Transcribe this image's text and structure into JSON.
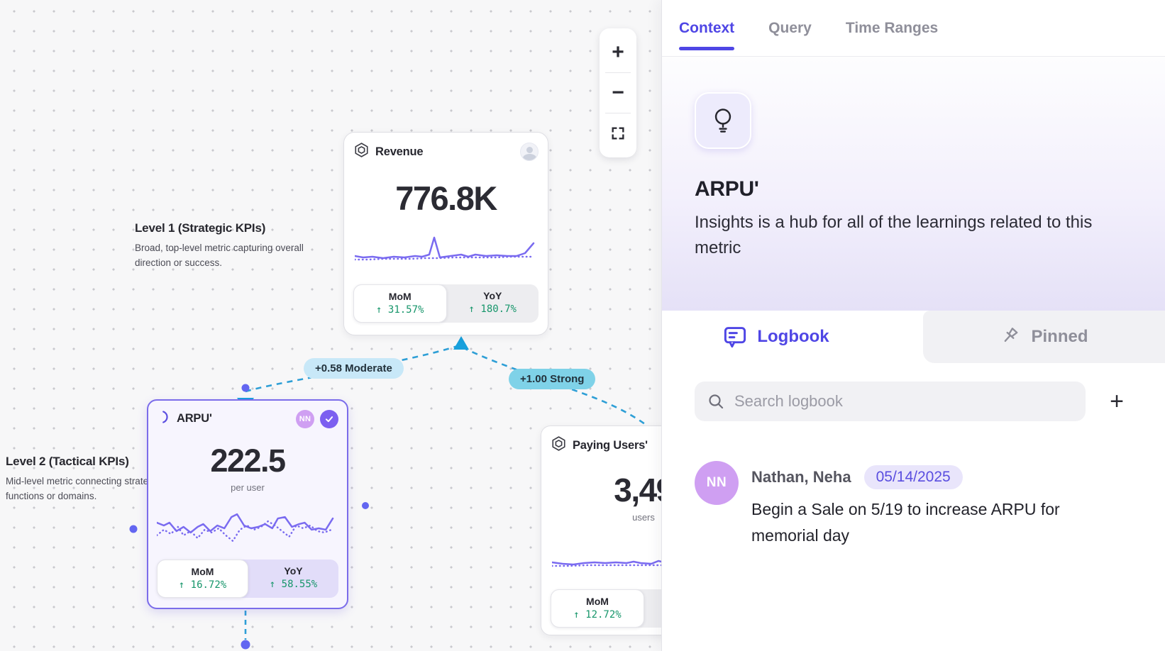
{
  "colors": {
    "accent": "#4f46e5",
    "sparkline": "#7a6bf0",
    "positive_green": "#17966b",
    "edge_blue": "#2e9fd6",
    "edge_label_moderate_bg": "#c8e8f8",
    "edge_label_strong_bg": "#7fd2e8",
    "avatar_purple": "#cf9ff2",
    "verified_badge": "#7c5ff0"
  },
  "canvas": {
    "zoom_controls": {
      "zoom_in": "+",
      "zoom_out": "−",
      "fit_view": "fit"
    },
    "annotations": [
      {
        "title": "Level 1 (Strategic KPIs)",
        "body": "Broad, top-level metric capturing overall direction or success."
      },
      {
        "title": "Level 2 (Tactical KPIs)",
        "body": "Mid-level metric connecting strategy to functions or domains."
      }
    ],
    "edges": [
      {
        "label": "+0.58 Moderate",
        "strength": "moderate"
      },
      {
        "label": "+1.00 Strong",
        "strength": "strong"
      }
    ],
    "cards": [
      {
        "title": "Revenue",
        "value": "776.8K",
        "unit": "",
        "mom": {
          "label": "MoM",
          "value": "↑ 31.57%"
        },
        "yoy": {
          "label": "YoY",
          "value": "↑ 180.7%"
        },
        "spark_solid": [
          [
            0,
            38
          ],
          [
            12,
            40
          ],
          [
            25,
            39
          ],
          [
            40,
            41
          ],
          [
            55,
            39
          ],
          [
            70,
            40
          ],
          [
            85,
            38
          ],
          [
            95,
            39
          ],
          [
            105,
            36
          ],
          [
            112,
            12
          ],
          [
            120,
            40
          ],
          [
            135,
            38
          ],
          [
            150,
            36
          ],
          [
            160,
            39
          ],
          [
            170,
            36
          ],
          [
            185,
            38
          ],
          [
            200,
            37
          ],
          [
            215,
            38
          ],
          [
            228,
            38
          ],
          [
            240,
            34
          ],
          [
            252,
            20
          ]
        ],
        "spark_dotted": [
          [
            0,
            43
          ],
          [
            20,
            43
          ],
          [
            40,
            42
          ],
          [
            60,
            42
          ],
          [
            80,
            42
          ],
          [
            100,
            41
          ],
          [
            110,
            41
          ],
          [
            120,
            41
          ],
          [
            140,
            40
          ],
          [
            160,
            40
          ],
          [
            180,
            40
          ],
          [
            200,
            40
          ],
          [
            220,
            39
          ],
          [
            240,
            39
          ],
          [
            252,
            39
          ]
        ]
      },
      {
        "title": "ARPU'",
        "value": "222.5",
        "unit": "per user",
        "avatar": "NN",
        "verified": true,
        "mom": {
          "label": "MoM",
          "value": "↑ 16.72%"
        },
        "yoy": {
          "label": "YoY",
          "value": "↑ 58.55%"
        },
        "spark_solid": [
          [
            0,
            26
          ],
          [
            10,
            30
          ],
          [
            18,
            26
          ],
          [
            28,
            38
          ],
          [
            38,
            32
          ],
          [
            48,
            40
          ],
          [
            58,
            32
          ],
          [
            66,
            28
          ],
          [
            76,
            38
          ],
          [
            86,
            30
          ],
          [
            96,
            34
          ],
          [
            106,
            18
          ],
          [
            114,
            14
          ],
          [
            124,
            30
          ],
          [
            134,
            34
          ],
          [
            144,
            32
          ],
          [
            154,
            28
          ],
          [
            164,
            34
          ],
          [
            172,
            20
          ],
          [
            182,
            18
          ],
          [
            192,
            32
          ],
          [
            202,
            28
          ],
          [
            210,
            26
          ],
          [
            220,
            36
          ],
          [
            230,
            34
          ],
          [
            240,
            36
          ],
          [
            250,
            20
          ]
        ],
        "spark_dotted": [
          [
            0,
            44
          ],
          [
            10,
            36
          ],
          [
            20,
            42
          ],
          [
            30,
            32
          ],
          [
            38,
            44
          ],
          [
            48,
            38
          ],
          [
            58,
            48
          ],
          [
            68,
            36
          ],
          [
            78,
            40
          ],
          [
            88,
            34
          ],
          [
            98,
            44
          ],
          [
            108,
            52
          ],
          [
            118,
            36
          ],
          [
            128,
            30
          ],
          [
            138,
            36
          ],
          [
            148,
            32
          ],
          [
            158,
            24
          ],
          [
            168,
            30
          ],
          [
            178,
            38
          ],
          [
            188,
            46
          ],
          [
            198,
            30
          ],
          [
            208,
            34
          ],
          [
            218,
            30
          ],
          [
            228,
            38
          ],
          [
            238,
            40
          ],
          [
            248,
            36
          ]
        ]
      },
      {
        "title": "Paying Users'",
        "value": "3,49",
        "unit": "users",
        "mom": {
          "label": "MoM",
          "value": "↑ 12.72%"
        },
        "yoy": {
          "label": "",
          "value": ""
        },
        "spark_solid": [
          [
            0,
            40
          ],
          [
            15,
            42
          ],
          [
            30,
            43
          ],
          [
            45,
            41
          ],
          [
            60,
            40
          ],
          [
            75,
            41
          ],
          [
            90,
            40
          ],
          [
            105,
            41
          ],
          [
            115,
            39
          ],
          [
            125,
            41
          ],
          [
            140,
            42
          ],
          [
            150,
            38
          ],
          [
            158,
            40
          ],
          [
            170,
            12
          ],
          [
            182,
            40
          ],
          [
            195,
            42
          ],
          [
            210,
            41
          ],
          [
            225,
            40
          ],
          [
            240,
            41
          ],
          [
            252,
            38
          ]
        ],
        "spark_dotted": [
          [
            0,
            45
          ],
          [
            25,
            45
          ],
          [
            50,
            44
          ],
          [
            75,
            44
          ],
          [
            100,
            44
          ],
          [
            125,
            44
          ],
          [
            150,
            44
          ],
          [
            175,
            44
          ],
          [
            200,
            44
          ],
          [
            225,
            44
          ],
          [
            252,
            44
          ]
        ]
      }
    ]
  },
  "panel": {
    "tabs": [
      {
        "label": "Context"
      },
      {
        "label": "Query"
      },
      {
        "label": "Time Ranges"
      }
    ],
    "active_tab": "Context",
    "metric": {
      "name": "ARPU'",
      "description": "Insights is a hub for all of the learnings related to this metric"
    },
    "sections": {
      "logbook": "Logbook",
      "pinned": "Pinned"
    },
    "search": {
      "placeholder": "Search logbook",
      "add_button": "+"
    },
    "entries": [
      {
        "author": "Nathan, Neha",
        "avatar": "NN",
        "date": "05/14/2025",
        "message": "Begin a Sale on 5/19 to increase ARPU for memorial day"
      }
    ]
  }
}
